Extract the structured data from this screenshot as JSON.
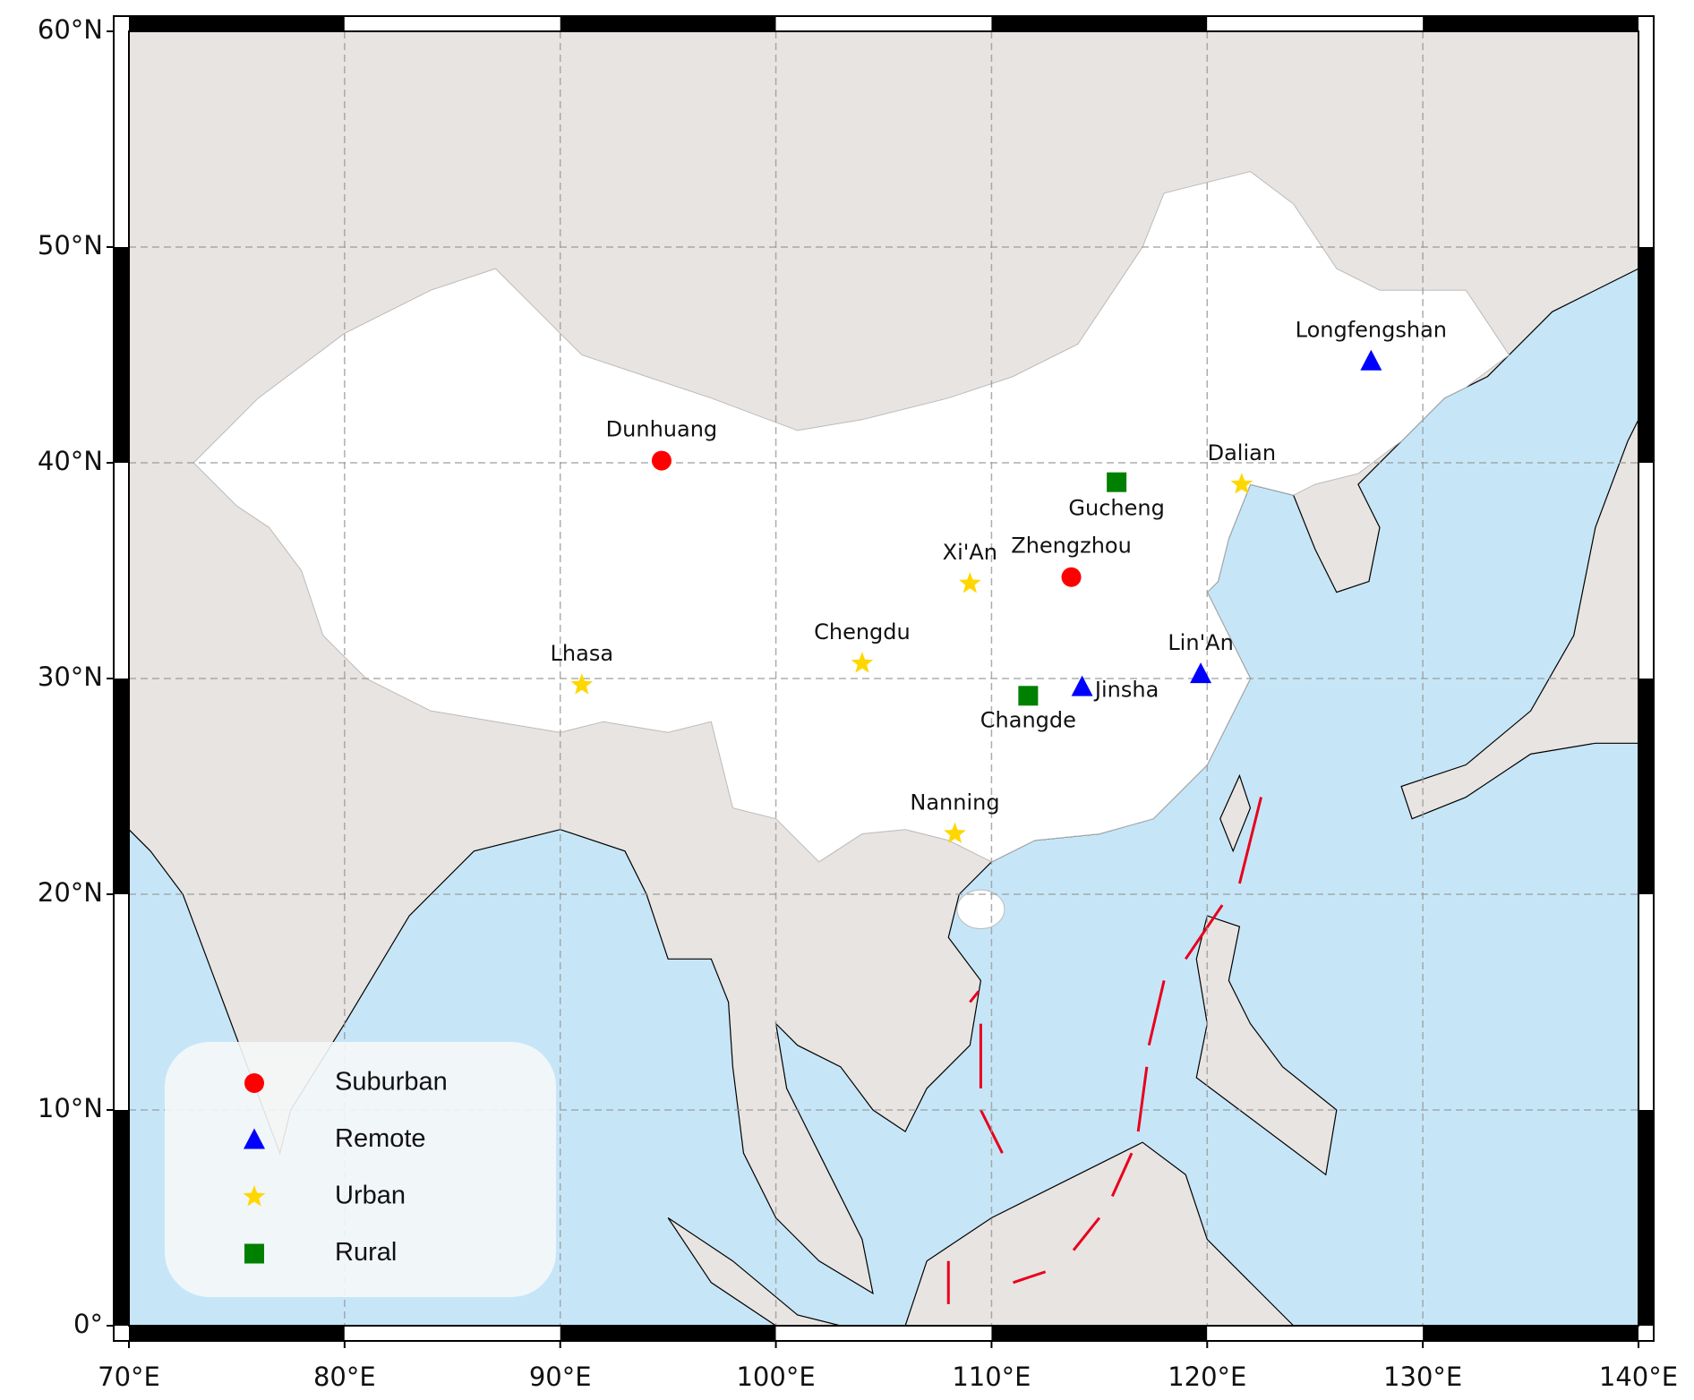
{
  "map": {
    "xlim": [
      70,
      140
    ],
    "ylim": [
      0,
      60
    ],
    "xticks": [
      {
        "value": 70,
        "label": "70°E"
      },
      {
        "value": 80,
        "label": "80°E"
      },
      {
        "value": 90,
        "label": "90°E"
      },
      {
        "value": 100,
        "label": "100°E"
      },
      {
        "value": 110,
        "label": "110°E"
      },
      {
        "value": 120,
        "label": "120°E"
      },
      {
        "value": 130,
        "label": "130°E"
      },
      {
        "value": 140,
        "label": "140°E"
      }
    ],
    "yticks": [
      {
        "value": 0,
        "label": "0°"
      },
      {
        "value": 10,
        "label": "10°N"
      },
      {
        "value": 20,
        "label": "20°N"
      },
      {
        "value": 30,
        "label": "30°N"
      },
      {
        "value": 40,
        "label": "40°N"
      },
      {
        "value": 50,
        "label": "50°N"
      },
      {
        "value": 60,
        "label": "60°N"
      }
    ],
    "grid": true,
    "legend": [
      {
        "name": "Suburban",
        "color": "#ff0000",
        "marker": "circle"
      },
      {
        "name": "Remote",
        "color": "#0000ff",
        "marker": "triangle"
      },
      {
        "name": "Urban",
        "color": "#ffd700",
        "marker": "star"
      },
      {
        "name": "Rural",
        "color": "#008000",
        "marker": "square"
      }
    ],
    "sites": [
      {
        "name": "Dunhuang",
        "category": "Suburban",
        "lon": 94.7,
        "lat": 40.1
      },
      {
        "name": "Zhengzhou",
        "category": "Suburban",
        "lon": 113.7,
        "lat": 34.7
      },
      {
        "name": "Longfengshan",
        "category": "Remote",
        "lon": 127.6,
        "lat": 44.7
      },
      {
        "name": "Lin'An",
        "category": "Remote",
        "lon": 119.7,
        "lat": 30.2
      },
      {
        "name": "Jinsha",
        "category": "Remote",
        "lon": 114.2,
        "lat": 29.6
      },
      {
        "name": "Dalian",
        "category": "Urban",
        "lon": 121.6,
        "lat": 39.0
      },
      {
        "name": "Xi'An",
        "category": "Urban",
        "lon": 109.0,
        "lat": 34.4
      },
      {
        "name": "Chengdu",
        "category": "Urban",
        "lon": 104.0,
        "lat": 30.7
      },
      {
        "name": "Lhasa",
        "category": "Urban",
        "lon": 91.0,
        "lat": 29.7
      },
      {
        "name": "Nanning",
        "category": "Urban",
        "lon": 108.3,
        "lat": 22.8
      },
      {
        "name": "Gucheng",
        "category": "Rural",
        "lon": 115.8,
        "lat": 39.1
      },
      {
        "name": "Changde",
        "category": "Rural",
        "lon": 111.7,
        "lat": 29.2
      }
    ]
  }
}
